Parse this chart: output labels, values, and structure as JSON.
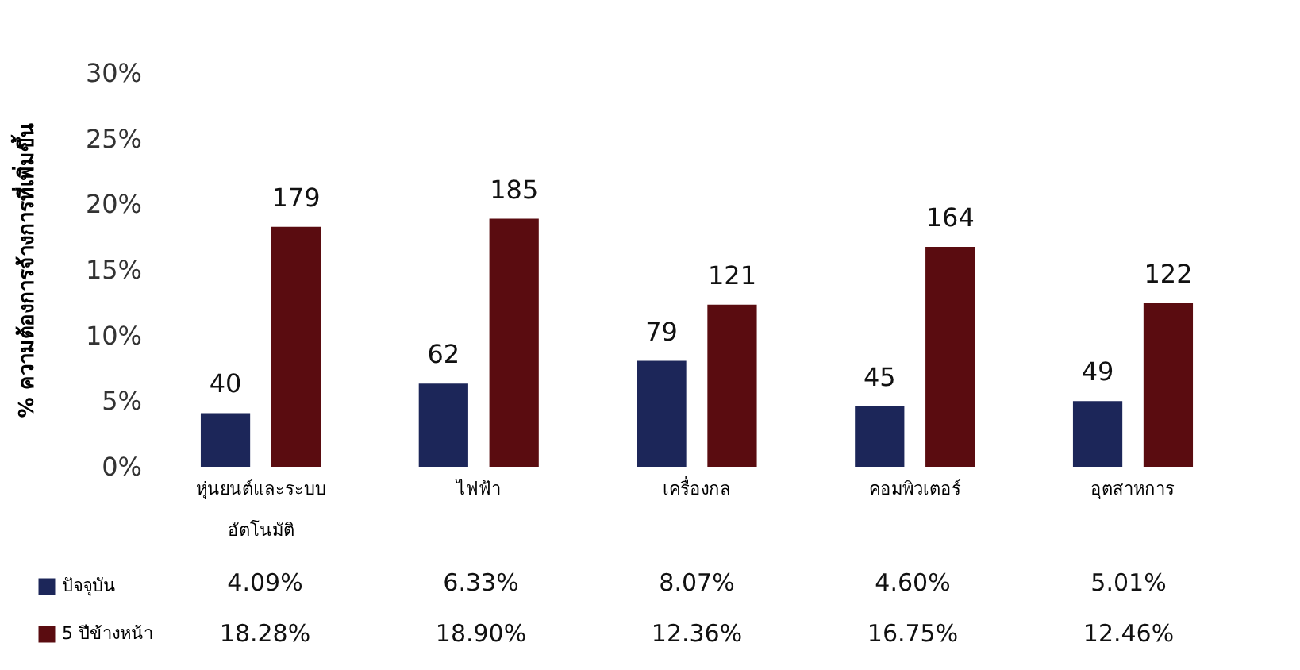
{
  "chart_data": {
    "type": "bar",
    "ylabel": "% ความต้องการจ้างการที่เพิ่มขึ้น",
    "categories": [
      "หุ่นยนต์และระบบ\nอัตโนมัติ",
      "ไฟฟ้า",
      "เครื่องกล",
      "คอมพิวเตอร์",
      "อุตสาหการ"
    ],
    "series": [
      {
        "name": "ปัจจุบัน",
        "color": "#1c2659",
        "values": [
          4.09,
          6.33,
          8.07,
          4.6,
          5.01
        ],
        "value_labels": [
          "4.09%",
          "6.33%",
          "8.07%",
          "4.60%",
          "5.01%"
        ]
      },
      {
        "name": "5 ปีข้างหน้า",
        "color": "#5a0c10",
        "values": [
          18.28,
          18.9,
          12.36,
          16.75,
          12.46
        ],
        "value_labels": [
          "18.28%",
          "18.90%",
          "12.36%",
          "16.75%",
          "12.46%"
        ]
      }
    ],
    "annotations": [
      "40",
      "62",
      "79",
      "45",
      "49",
      "179",
      "185",
      "121",
      "164",
      "122"
    ],
    "ylim": [
      0,
      30
    ],
    "yticks": [
      {
        "value": 0,
        "label": "0%"
      },
      {
        "value": 5,
        "label": "5%"
      },
      {
        "value": 10,
        "label": "10%"
      },
      {
        "value": 15,
        "label": "15%"
      },
      {
        "value": 20,
        "label": "20%"
      },
      {
        "value": 25,
        "label": "25%"
      },
      {
        "value": 30,
        "label": "30%"
      }
    ],
    "grid": false,
    "legend": "bottom left"
  }
}
